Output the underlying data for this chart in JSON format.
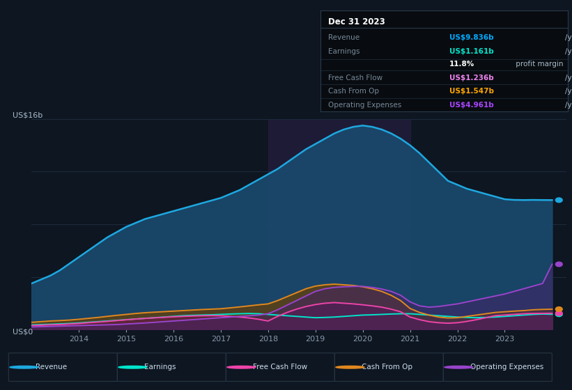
{
  "bg_color": "#0e1621",
  "chart_bg": "#0e1621",
  "grid_color": "#1c2c3e",
  "title_box": {
    "date": "Dec 31 2023",
    "rows": [
      {
        "label": "Revenue",
        "value": "US$9.836b",
        "unit": "/yr",
        "value_color": "#00aaff",
        "sep_below": true
      },
      {
        "label": "Earnings",
        "value": "US$1.161b",
        "unit": "/yr",
        "value_color": "#00e5cc",
        "sep_below": false
      },
      {
        "label": "",
        "value": "11.8%",
        "unit": " profit margin",
        "value_color": "#ffffff",
        "sep_below": true
      },
      {
        "label": "Free Cash Flow",
        "value": "US$1.236b",
        "unit": "/yr",
        "value_color": "#ee82ee",
        "sep_below": true
      },
      {
        "label": "Cash From Op",
        "value": "US$1.547b",
        "unit": "/yr",
        "value_color": "#ffa500",
        "sep_below": true
      },
      {
        "label": "Operating Expenses",
        "value": "US$4.961b",
        "unit": "/yr",
        "value_color": "#aa44ff",
        "sep_below": false
      }
    ]
  },
  "ylabel_top": "US$16b",
  "ylabel_bottom": "US$0",
  "series": {
    "years": [
      2013.0,
      2013.2,
      2013.4,
      2013.6,
      2013.8,
      2014.0,
      2014.2,
      2014.4,
      2014.6,
      2014.8,
      2015.0,
      2015.2,
      2015.4,
      2015.6,
      2015.8,
      2016.0,
      2016.2,
      2016.4,
      2016.6,
      2016.8,
      2017.0,
      2017.2,
      2017.4,
      2017.6,
      2017.8,
      2018.0,
      2018.2,
      2018.4,
      2018.6,
      2018.8,
      2019.0,
      2019.2,
      2019.4,
      2019.6,
      2019.8,
      2020.0,
      2020.2,
      2020.4,
      2020.6,
      2020.8,
      2021.0,
      2021.2,
      2021.4,
      2021.6,
      2021.8,
      2022.0,
      2022.2,
      2022.4,
      2022.6,
      2022.8,
      2023.0,
      2023.2,
      2023.4,
      2023.6,
      2023.8,
      2024.0
    ],
    "revenue": [
      3.5,
      3.8,
      4.1,
      4.5,
      5.0,
      5.5,
      6.0,
      6.5,
      7.0,
      7.4,
      7.8,
      8.1,
      8.4,
      8.6,
      8.8,
      9.0,
      9.2,
      9.4,
      9.6,
      9.8,
      10.0,
      10.3,
      10.6,
      11.0,
      11.4,
      11.8,
      12.2,
      12.7,
      13.2,
      13.7,
      14.1,
      14.5,
      14.9,
      15.2,
      15.4,
      15.5,
      15.4,
      15.2,
      14.9,
      14.5,
      14.0,
      13.4,
      12.7,
      12.0,
      11.3,
      11.0,
      10.7,
      10.5,
      10.3,
      10.1,
      9.9,
      9.85,
      9.84,
      9.85,
      9.84,
      9.836
    ],
    "earnings": [
      0.35,
      0.38,
      0.4,
      0.43,
      0.46,
      0.5,
      0.55,
      0.6,
      0.65,
      0.7,
      0.75,
      0.8,
      0.85,
      0.9,
      0.95,
      1.0,
      1.05,
      1.08,
      1.1,
      1.12,
      1.15,
      1.18,
      1.2,
      1.22,
      1.2,
      1.15,
      1.1,
      1.05,
      1.0,
      0.95,
      0.9,
      0.92,
      0.95,
      1.0,
      1.05,
      1.1,
      1.12,
      1.15,
      1.18,
      1.2,
      1.2,
      1.15,
      1.1,
      1.05,
      1.0,
      0.95,
      0.92,
      0.9,
      0.92,
      0.95,
      1.0,
      1.05,
      1.1,
      1.15,
      1.18,
      1.161
    ],
    "cash_from_op": [
      0.55,
      0.6,
      0.65,
      0.68,
      0.72,
      0.78,
      0.85,
      0.92,
      1.0,
      1.08,
      1.15,
      1.22,
      1.28,
      1.32,
      1.36,
      1.4,
      1.44,
      1.48,
      1.52,
      1.55,
      1.58,
      1.65,
      1.72,
      1.8,
      1.88,
      1.95,
      2.2,
      2.5,
      2.8,
      3.1,
      3.3,
      3.4,
      3.45,
      3.4,
      3.35,
      3.25,
      3.1,
      2.9,
      2.6,
      2.2,
      1.6,
      1.3,
      1.1,
      0.95,
      0.88,
      0.9,
      1.0,
      1.1,
      1.2,
      1.3,
      1.35,
      1.4,
      1.44,
      1.5,
      1.53,
      1.547
    ],
    "free_cash_flow": [
      0.3,
      0.33,
      0.36,
      0.38,
      0.42,
      0.46,
      0.52,
      0.57,
      0.62,
      0.68,
      0.74,
      0.8,
      0.85,
      0.89,
      0.93,
      0.97,
      1.0,
      1.03,
      1.05,
      1.06,
      1.05,
      1.0,
      0.95,
      0.88,
      0.78,
      0.65,
      1.0,
      1.3,
      1.55,
      1.75,
      1.9,
      2.0,
      2.05,
      2.0,
      1.95,
      1.88,
      1.8,
      1.7,
      1.55,
      1.35,
      0.95,
      0.75,
      0.6,
      0.52,
      0.48,
      0.52,
      0.62,
      0.75,
      0.9,
      1.05,
      1.1,
      1.15,
      1.2,
      1.22,
      1.23,
      1.236
    ],
    "op_expenses": [
      0.2,
      0.22,
      0.24,
      0.26,
      0.28,
      0.3,
      0.32,
      0.34,
      0.36,
      0.38,
      0.42,
      0.46,
      0.5,
      0.55,
      0.6,
      0.65,
      0.7,
      0.75,
      0.8,
      0.85,
      0.9,
      0.95,
      1.0,
      1.05,
      1.1,
      1.2,
      1.5,
      1.85,
      2.2,
      2.55,
      2.9,
      3.1,
      3.2,
      3.25,
      3.28,
      3.28,
      3.2,
      3.08,
      2.9,
      2.6,
      2.1,
      1.8,
      1.7,
      1.75,
      1.85,
      1.95,
      2.1,
      2.25,
      2.4,
      2.55,
      2.7,
      2.9,
      3.1,
      3.3,
      3.5,
      4.961
    ]
  },
  "colors": {
    "revenue": "#1ea8e0",
    "revenue_fill": "#1a4a6e",
    "earnings": "#00e5cc",
    "earnings_fill": "#0a4040",
    "free_cash_flow": "#ee44aa",
    "free_cash_flow_fill": "#602040",
    "cash_from_op": "#e08820",
    "cash_from_op_fill": "#604010",
    "op_expenses": "#9944cc",
    "op_expenses_fill": "#442266"
  },
  "legend": [
    {
      "label": "Revenue",
      "color": "#1ea8e0"
    },
    {
      "label": "Earnings",
      "color": "#00e5cc"
    },
    {
      "label": "Free Cash Flow",
      "color": "#ee44aa"
    },
    {
      "label": "Cash From Op",
      "color": "#e08820"
    },
    {
      "label": "Operating Expenses",
      "color": "#9944cc"
    }
  ],
  "xlim": [
    2013.0,
    2024.3
  ],
  "ylim": [
    0,
    16
  ],
  "xticks": [
    2014,
    2015,
    2016,
    2017,
    2018,
    2019,
    2020,
    2021,
    2022,
    2023
  ],
  "shaded_region": {
    "start": 2018.0,
    "end": 2021.0,
    "color": "#251e40",
    "alpha": 0.7
  },
  "n_gridlines": 3,
  "gridline_values": [
    4,
    8,
    12
  ]
}
